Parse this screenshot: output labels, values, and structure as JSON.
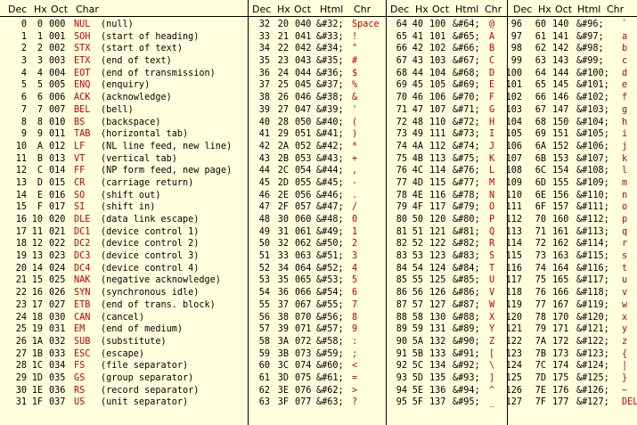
{
  "headers": {
    "g1": [
      "Dec",
      "Hx",
      "Oct",
      "Char"
    ],
    "g2": [
      "Dec",
      "Hx",
      "Oct",
      "Html",
      "Chr"
    ],
    "g3": [
      "Dec",
      "Hx",
      "Oct",
      "Html",
      "Chr"
    ],
    "g4": [
      "Dec",
      "Hx",
      "Oct",
      "Html",
      "Chr"
    ]
  },
  "group1": [
    {
      "dec": "0",
      "hx": "0",
      "oct": "000",
      "abbr": "NUL",
      "desc": "(null)"
    },
    {
      "dec": "1",
      "hx": "1",
      "oct": "001",
      "abbr": "SOH",
      "desc": "(start of heading)"
    },
    {
      "dec": "2",
      "hx": "2",
      "oct": "002",
      "abbr": "STX",
      "desc": "(start of text)"
    },
    {
      "dec": "3",
      "hx": "3",
      "oct": "003",
      "abbr": "ETX",
      "desc": "(end of text)"
    },
    {
      "dec": "4",
      "hx": "4",
      "oct": "004",
      "abbr": "EOT",
      "desc": "(end of transmission)"
    },
    {
      "dec": "5",
      "hx": "5",
      "oct": "005",
      "abbr": "ENQ",
      "desc": "(enquiry)"
    },
    {
      "dec": "6",
      "hx": "6",
      "oct": "006",
      "abbr": "ACK",
      "desc": "(acknowledge)"
    },
    {
      "dec": "7",
      "hx": "7",
      "oct": "007",
      "abbr": "BEL",
      "desc": "(bell)"
    },
    {
      "dec": "8",
      "hx": "8",
      "oct": "010",
      "abbr": "BS",
      "desc": "(backspace)"
    },
    {
      "dec": "9",
      "hx": "9",
      "oct": "011",
      "abbr": "TAB",
      "desc": "(horizontal tab)"
    },
    {
      "dec": "10",
      "hx": "A",
      "oct": "012",
      "abbr": "LF",
      "desc": "(NL line feed, new line)"
    },
    {
      "dec": "11",
      "hx": "B",
      "oct": "013",
      "abbr": "VT",
      "desc": "(vertical tab)"
    },
    {
      "dec": "12",
      "hx": "C",
      "oct": "014",
      "abbr": "FF",
      "desc": "(NP form feed, new page)"
    },
    {
      "dec": "13",
      "hx": "D",
      "oct": "015",
      "abbr": "CR",
      "desc": "(carriage return)"
    },
    {
      "dec": "14",
      "hx": "E",
      "oct": "016",
      "abbr": "SO",
      "desc": "(shift out)"
    },
    {
      "dec": "15",
      "hx": "F",
      "oct": "017",
      "abbr": "SI",
      "desc": "(shift in)"
    },
    {
      "dec": "16",
      "hx": "10",
      "oct": "020",
      "abbr": "DLE",
      "desc": "(data link escape)"
    },
    {
      "dec": "17",
      "hx": "11",
      "oct": "021",
      "abbr": "DC1",
      "desc": "(device control 1)"
    },
    {
      "dec": "18",
      "hx": "12",
      "oct": "022",
      "abbr": "DC2",
      "desc": "(device control 2)"
    },
    {
      "dec": "19",
      "hx": "13",
      "oct": "023",
      "abbr": "DC3",
      "desc": "(device control 3)"
    },
    {
      "dec": "20",
      "hx": "14",
      "oct": "024",
      "abbr": "DC4",
      "desc": "(device control 4)"
    },
    {
      "dec": "21",
      "hx": "15",
      "oct": "025",
      "abbr": "NAK",
      "desc": "(negative acknowledge)"
    },
    {
      "dec": "22",
      "hx": "16",
      "oct": "026",
      "abbr": "SYN",
      "desc": "(synchronous idle)"
    },
    {
      "dec": "23",
      "hx": "17",
      "oct": "027",
      "abbr": "ETB",
      "desc": "(end of trans. block)"
    },
    {
      "dec": "24",
      "hx": "18",
      "oct": "030",
      "abbr": "CAN",
      "desc": "(cancel)"
    },
    {
      "dec": "25",
      "hx": "19",
      "oct": "031",
      "abbr": "EM",
      "desc": "(end of medium)"
    },
    {
      "dec": "26",
      "hx": "1A",
      "oct": "032",
      "abbr": "SUB",
      "desc": "(substitute)"
    },
    {
      "dec": "27",
      "hx": "1B",
      "oct": "033",
      "abbr": "ESC",
      "desc": "(escape)"
    },
    {
      "dec": "28",
      "hx": "1C",
      "oct": "034",
      "abbr": "FS",
      "desc": "(file separator)"
    },
    {
      "dec": "29",
      "hx": "1D",
      "oct": "035",
      "abbr": "GS",
      "desc": "(group separator)"
    },
    {
      "dec": "30",
      "hx": "1E",
      "oct": "036",
      "abbr": "RS",
      "desc": "(record separator)"
    },
    {
      "dec": "31",
      "hx": "1F",
      "oct": "037",
      "abbr": "US",
      "desc": "(unit separator)"
    }
  ],
  "group2": [
    {
      "dec": "32",
      "hx": "20",
      "oct": "040",
      "html": "&#32;",
      "chr": "Space"
    },
    {
      "dec": "33",
      "hx": "21",
      "oct": "041",
      "html": "&#33;",
      "chr": "!"
    },
    {
      "dec": "34",
      "hx": "22",
      "oct": "042",
      "html": "&#34;",
      "chr": "\""
    },
    {
      "dec": "35",
      "hx": "23",
      "oct": "043",
      "html": "&#35;",
      "chr": "#"
    },
    {
      "dec": "36",
      "hx": "24",
      "oct": "044",
      "html": "&#36;",
      "chr": "$"
    },
    {
      "dec": "37",
      "hx": "25",
      "oct": "045",
      "html": "&#37;",
      "chr": "%"
    },
    {
      "dec": "38",
      "hx": "26",
      "oct": "046",
      "html": "&#38;",
      "chr": "&"
    },
    {
      "dec": "39",
      "hx": "27",
      "oct": "047",
      "html": "&#39;",
      "chr": "'"
    },
    {
      "dec": "40",
      "hx": "28",
      "oct": "050",
      "html": "&#40;",
      "chr": "("
    },
    {
      "dec": "41",
      "hx": "29",
      "oct": "051",
      "html": "&#41;",
      "chr": ")"
    },
    {
      "dec": "42",
      "hx": "2A",
      "oct": "052",
      "html": "&#42;",
      "chr": "*"
    },
    {
      "dec": "43",
      "hx": "2B",
      "oct": "053",
      "html": "&#43;",
      "chr": "+"
    },
    {
      "dec": "44",
      "hx": "2C",
      "oct": "054",
      "html": "&#44;",
      "chr": ","
    },
    {
      "dec": "45",
      "hx": "2D",
      "oct": "055",
      "html": "&#45;",
      "chr": "-"
    },
    {
      "dec": "46",
      "hx": "2E",
      "oct": "056",
      "html": "&#46;",
      "chr": "."
    },
    {
      "dec": "47",
      "hx": "2F",
      "oct": "057",
      "html": "&#47;",
      "chr": "/"
    },
    {
      "dec": "48",
      "hx": "30",
      "oct": "060",
      "html": "&#48;",
      "chr": "0"
    },
    {
      "dec": "49",
      "hx": "31",
      "oct": "061",
      "html": "&#49;",
      "chr": "1"
    },
    {
      "dec": "50",
      "hx": "32",
      "oct": "062",
      "html": "&#50;",
      "chr": "2"
    },
    {
      "dec": "51",
      "hx": "33",
      "oct": "063",
      "html": "&#51;",
      "chr": "3"
    },
    {
      "dec": "52",
      "hx": "34",
      "oct": "064",
      "html": "&#52;",
      "chr": "4"
    },
    {
      "dec": "53",
      "hx": "35",
      "oct": "065",
      "html": "&#53;",
      "chr": "5"
    },
    {
      "dec": "54",
      "hx": "36",
      "oct": "066",
      "html": "&#54;",
      "chr": "6"
    },
    {
      "dec": "55",
      "hx": "37",
      "oct": "067",
      "html": "&#55;",
      "chr": "7"
    },
    {
      "dec": "56",
      "hx": "38",
      "oct": "070",
      "html": "&#56;",
      "chr": "8"
    },
    {
      "dec": "57",
      "hx": "39",
      "oct": "071",
      "html": "&#57;",
      "chr": "9"
    },
    {
      "dec": "58",
      "hx": "3A",
      "oct": "072",
      "html": "&#58;",
      "chr": ":"
    },
    {
      "dec": "59",
      "hx": "3B",
      "oct": "073",
      "html": "&#59;",
      "chr": ";"
    },
    {
      "dec": "60",
      "hx": "3C",
      "oct": "074",
      "html": "&#60;",
      "chr": "<"
    },
    {
      "dec": "61",
      "hx": "3D",
      "oct": "075",
      "html": "&#61;",
      "chr": "="
    },
    {
      "dec": "62",
      "hx": "3E",
      "oct": "076",
      "html": "&#62;",
      "chr": ">"
    },
    {
      "dec": "63",
      "hx": "3F",
      "oct": "077",
      "html": "&#63;",
      "chr": "?"
    }
  ],
  "group3": [
    {
      "dec": "64",
      "hx": "40",
      "oct": "100",
      "html": "&#64;",
      "chr": "@"
    },
    {
      "dec": "65",
      "hx": "41",
      "oct": "101",
      "html": "&#65;",
      "chr": "A"
    },
    {
      "dec": "66",
      "hx": "42",
      "oct": "102",
      "html": "&#66;",
      "chr": "B"
    },
    {
      "dec": "67",
      "hx": "43",
      "oct": "103",
      "html": "&#67;",
      "chr": "C"
    },
    {
      "dec": "68",
      "hx": "44",
      "oct": "104",
      "html": "&#68;",
      "chr": "D"
    },
    {
      "dec": "69",
      "hx": "45",
      "oct": "105",
      "html": "&#69;",
      "chr": "E"
    },
    {
      "dec": "70",
      "hx": "46",
      "oct": "106",
      "html": "&#70;",
      "chr": "F"
    },
    {
      "dec": "71",
      "hx": "47",
      "oct": "107",
      "html": "&#71;",
      "chr": "G"
    },
    {
      "dec": "72",
      "hx": "48",
      "oct": "110",
      "html": "&#72;",
      "chr": "H"
    },
    {
      "dec": "73",
      "hx": "49",
      "oct": "111",
      "html": "&#73;",
      "chr": "I"
    },
    {
      "dec": "74",
      "hx": "4A",
      "oct": "112",
      "html": "&#74;",
      "chr": "J"
    },
    {
      "dec": "75",
      "hx": "4B",
      "oct": "113",
      "html": "&#75;",
      "chr": "K"
    },
    {
      "dec": "76",
      "hx": "4C",
      "oct": "114",
      "html": "&#76;",
      "chr": "L"
    },
    {
      "dec": "77",
      "hx": "4D",
      "oct": "115",
      "html": "&#77;",
      "chr": "M"
    },
    {
      "dec": "78",
      "hx": "4E",
      "oct": "116",
      "html": "&#78;",
      "chr": "N"
    },
    {
      "dec": "79",
      "hx": "4F",
      "oct": "117",
      "html": "&#79;",
      "chr": "O"
    },
    {
      "dec": "80",
      "hx": "50",
      "oct": "120",
      "html": "&#80;",
      "chr": "P"
    },
    {
      "dec": "81",
      "hx": "51",
      "oct": "121",
      "html": "&#81;",
      "chr": "Q"
    },
    {
      "dec": "82",
      "hx": "52",
      "oct": "122",
      "html": "&#82;",
      "chr": "R"
    },
    {
      "dec": "83",
      "hx": "53",
      "oct": "123",
      "html": "&#83;",
      "chr": "S"
    },
    {
      "dec": "84",
      "hx": "54",
      "oct": "124",
      "html": "&#84;",
      "chr": "T"
    },
    {
      "dec": "85",
      "hx": "55",
      "oct": "125",
      "html": "&#85;",
      "chr": "U"
    },
    {
      "dec": "86",
      "hx": "56",
      "oct": "126",
      "html": "&#86;",
      "chr": "V"
    },
    {
      "dec": "87",
      "hx": "57",
      "oct": "127",
      "html": "&#87;",
      "chr": "W"
    },
    {
      "dec": "88",
      "hx": "58",
      "oct": "130",
      "html": "&#88;",
      "chr": "X"
    },
    {
      "dec": "89",
      "hx": "59",
      "oct": "131",
      "html": "&#89;",
      "chr": "Y"
    },
    {
      "dec": "90",
      "hx": "5A",
      "oct": "132",
      "html": "&#90;",
      "chr": "Z"
    },
    {
      "dec": "91",
      "hx": "5B",
      "oct": "133",
      "html": "&#91;",
      "chr": "["
    },
    {
      "dec": "92",
      "hx": "5C",
      "oct": "134",
      "html": "&#92;",
      "chr": "\\"
    },
    {
      "dec": "93",
      "hx": "5D",
      "oct": "135",
      "html": "&#93;",
      "chr": "]"
    },
    {
      "dec": "94",
      "hx": "5E",
      "oct": "136",
      "html": "&#94;",
      "chr": "^"
    },
    {
      "dec": "95",
      "hx": "5F",
      "oct": "137",
      "html": "&#95;",
      "chr": "_"
    }
  ],
  "group4": [
    {
      "dec": "96",
      "hx": "60",
      "oct": "140",
      "html": "&#96;",
      "chr": "`"
    },
    {
      "dec": "97",
      "hx": "61",
      "oct": "141",
      "html": "&#97;",
      "chr": "a"
    },
    {
      "dec": "98",
      "hx": "62",
      "oct": "142",
      "html": "&#98;",
      "chr": "b"
    },
    {
      "dec": "99",
      "hx": "63",
      "oct": "143",
      "html": "&#99;",
      "chr": "c"
    },
    {
      "dec": "100",
      "hx": "64",
      "oct": "144",
      "html": "&#100;",
      "chr": "d"
    },
    {
      "dec": "101",
      "hx": "65",
      "oct": "145",
      "html": "&#101;",
      "chr": "e"
    },
    {
      "dec": "102",
      "hx": "66",
      "oct": "146",
      "html": "&#102;",
      "chr": "f"
    },
    {
      "dec": "103",
      "hx": "67",
      "oct": "147",
      "html": "&#103;",
      "chr": "g"
    },
    {
      "dec": "104",
      "hx": "68",
      "oct": "150",
      "html": "&#104;",
      "chr": "h"
    },
    {
      "dec": "105",
      "hx": "69",
      "oct": "151",
      "html": "&#105;",
      "chr": "i"
    },
    {
      "dec": "106",
      "hx": "6A",
      "oct": "152",
      "html": "&#106;",
      "chr": "j"
    },
    {
      "dec": "107",
      "hx": "6B",
      "oct": "153",
      "html": "&#107;",
      "chr": "k"
    },
    {
      "dec": "108",
      "hx": "6C",
      "oct": "154",
      "html": "&#108;",
      "chr": "l"
    },
    {
      "dec": "109",
      "hx": "6D",
      "oct": "155",
      "html": "&#109;",
      "chr": "m"
    },
    {
      "dec": "110",
      "hx": "6E",
      "oct": "156",
      "html": "&#110;",
      "chr": "n"
    },
    {
      "dec": "111",
      "hx": "6F",
      "oct": "157",
      "html": "&#111;",
      "chr": "o"
    },
    {
      "dec": "112",
      "hx": "70",
      "oct": "160",
      "html": "&#112;",
      "chr": "p"
    },
    {
      "dec": "113",
      "hx": "71",
      "oct": "161",
      "html": "&#113;",
      "chr": "q"
    },
    {
      "dec": "114",
      "hx": "72",
      "oct": "162",
      "html": "&#114;",
      "chr": "r"
    },
    {
      "dec": "115",
      "hx": "73",
      "oct": "163",
      "html": "&#115;",
      "chr": "s"
    },
    {
      "dec": "116",
      "hx": "74",
      "oct": "164",
      "html": "&#116;",
      "chr": "t"
    },
    {
      "dec": "117",
      "hx": "75",
      "oct": "165",
      "html": "&#117;",
      "chr": "u"
    },
    {
      "dec": "118",
      "hx": "76",
      "oct": "166",
      "html": "&#118;",
      "chr": "v"
    },
    {
      "dec": "119",
      "hx": "77",
      "oct": "167",
      "html": "&#119;",
      "chr": "w"
    },
    {
      "dec": "120",
      "hx": "78",
      "oct": "170",
      "html": "&#120;",
      "chr": "x"
    },
    {
      "dec": "121",
      "hx": "79",
      "oct": "171",
      "html": "&#121;",
      "chr": "y"
    },
    {
      "dec": "122",
      "hx": "7A",
      "oct": "172",
      "html": "&#122;",
      "chr": "z"
    },
    {
      "dec": "123",
      "hx": "7B",
      "oct": "173",
      "html": "&#123;",
      "chr": "{"
    },
    {
      "dec": "124",
      "hx": "7C",
      "oct": "174",
      "html": "&#124;",
      "chr": "|"
    },
    {
      "dec": "125",
      "hx": "7D",
      "oct": "175",
      "html": "&#125;",
      "chr": "}"
    },
    {
      "dec": "126",
      "hx": "7E",
      "oct": "176",
      "html": "&#126;",
      "chr": "~"
    },
    {
      "dec": "127",
      "hx": "7F",
      "oct": "177",
      "html": "&#127;",
      "chr": "DEL"
    }
  ],
  "colors": {
    "background": "#ffffdd",
    "char_red": "#c00000",
    "text": "#000000"
  }
}
